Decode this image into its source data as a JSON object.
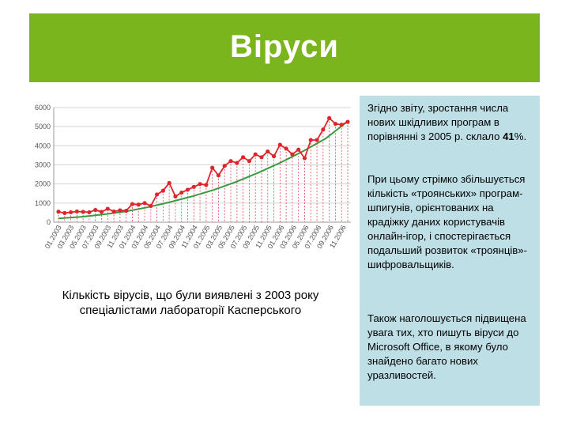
{
  "slide": {
    "title": "Віруси"
  },
  "caption": {
    "line1": "Кількість вірусів, що були виявлені з 2003 року",
    "line2": "спеціалістами лабораторії Касперського"
  },
  "side_text": {
    "p1_before": "Згідно звіту, зростання числа нових шкідливих програм в порівнянні з 2005 р. склало ",
    "p1_value": "41",
    "p1_after": "%.",
    "p2": "При цьому стрімко збільшується кількість «троянських» програм-шпигунів, орієнтованих на крадіжку даних користувачів онлайн-ігор, і спостерігається подальший розвиток «троянців»-шифровальщиків.",
    "p3": "Також наголошується підвищена увага тих, хто пишуть віруси до Microsoft Office, в якому було знайдено багато нових уразливостей."
  },
  "colors": {
    "title_bg": "#7ab51d",
    "panel_bg": "#bfdfe6",
    "data_line": "#e0242a",
    "trend_line": "#3a9a43",
    "drop_line": "#e0242a",
    "grid": "#d3d3d3"
  },
  "chart_data": {
    "type": "line",
    "title": "",
    "xlabel": "",
    "ylabel": "",
    "ylim": [
      0,
      6000
    ],
    "yticks": [
      0,
      1000,
      2000,
      3000,
      4000,
      5000,
      6000
    ],
    "xtick_labels": [
      "01.2003",
      "03.2003",
      "05.2003",
      "07.2003",
      "09.2003",
      "11.2003",
      "01.2004",
      "03.2004",
      "05.2004",
      "07.2004",
      "09.2004",
      "11.2004",
      "01.2005",
      "03.2005",
      "05.2005",
      "07.2005",
      "09.2005",
      "11.2005",
      "01.2006",
      "03.2006",
      "05.2006",
      "07.2006",
      "09.2006",
      "11.2006"
    ],
    "grid": true,
    "series": [
      {
        "values": [
          550,
          480,
          520,
          560,
          540,
          520,
          640,
          540,
          700,
          560,
          620,
          600,
          950,
          920,
          1000,
          850,
          1450,
          1650,
          2050,
          1350,
          1550,
          1700,
          1850,
          2000,
          1950,
          2850,
          2450,
          2950,
          3200,
          3100,
          3400,
          3200,
          3550,
          3400,
          3700,
          3450,
          4050,
          3850,
          3550,
          3800,
          3350,
          4300,
          4300,
          4850,
          5450,
          5150,
          5100,
          5250
        ]
      },
      {
        "trend_values": [
          200,
          280,
          400,
          560,
          780,
          1050,
          1350,
          1700,
          2120,
          2600,
          3130,
          3720,
          4370,
          5280
        ]
      }
    ]
  }
}
